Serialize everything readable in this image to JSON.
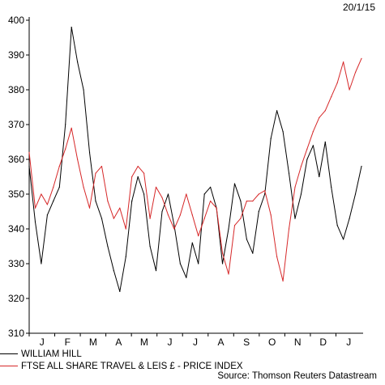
{
  "chart_data": {
    "type": "line",
    "date_label": "20/1/15",
    "source": "Source: Thomson Reuters Datastream",
    "ylim": [
      310,
      400
    ],
    "yticks": [
      400,
      390,
      380,
      370,
      360,
      350,
      340,
      330,
      320,
      310
    ],
    "xtick_labels": [
      "J",
      "F",
      "M",
      "A",
      "M",
      "J",
      "J",
      "A",
      "S",
      "O",
      "N",
      "D",
      "J"
    ],
    "grid": false,
    "legend_position": "bottom-left",
    "x_unit": "weeks from start of January 2014",
    "series": [
      {
        "name": "WILLIAM HILL",
        "color": "#000000",
        "x": [
          0,
          1,
          2,
          3,
          4,
          5,
          6,
          7,
          8,
          9,
          10,
          11,
          12,
          13,
          14,
          15,
          16,
          17,
          18,
          19,
          20,
          21,
          22,
          23,
          24,
          25,
          26,
          27,
          28,
          29,
          30,
          31,
          32,
          33,
          34,
          35,
          36,
          37,
          38,
          39,
          40,
          41,
          42,
          43,
          44,
          45,
          46,
          47,
          48,
          49,
          50,
          51,
          52,
          53,
          54,
          55
        ],
        "values": [
          358,
          342,
          330,
          344,
          348,
          352,
          370,
          398,
          388,
          380,
          362,
          348,
          343,
          335,
          328,
          322,
          332,
          348,
          355,
          350,
          335,
          328,
          345,
          350,
          341,
          330,
          326,
          336,
          330,
          350,
          352,
          346,
          330,
          340,
          353,
          348,
          337,
          333,
          345,
          350,
          366,
          374,
          368,
          356,
          343,
          350,
          360,
          364,
          355,
          365,
          352,
          341,
          337,
          343,
          350,
          358
        ]
      },
      {
        "name": "FTSE ALL SHARE TRAVEL & LEIS £ - PRICE INDEX",
        "color": "#d62728",
        "x": [
          0,
          1,
          2,
          3,
          4,
          5,
          6,
          7,
          8,
          9,
          10,
          11,
          12,
          13,
          14,
          15,
          16,
          17,
          18,
          19,
          20,
          21,
          22,
          23,
          24,
          25,
          26,
          27,
          28,
          29,
          30,
          31,
          32,
          33,
          34,
          35,
          36,
          37,
          38,
          39,
          40,
          41,
          42,
          43,
          44,
          45,
          46,
          47,
          48,
          49,
          50,
          51,
          52,
          53,
          54,
          55
        ],
        "values": [
          362,
          346,
          350,
          347,
          352,
          358,
          363,
          369,
          360,
          352,
          346,
          356,
          358,
          348,
          343,
          346,
          340,
          355,
          358,
          356,
          343,
          352,
          349,
          344,
          340,
          344,
          350,
          344,
          338,
          343,
          348,
          346,
          333,
          327,
          341,
          343,
          348,
          348,
          350,
          351,
          344,
          332,
          325,
          340,
          352,
          358,
          363,
          368,
          372,
          374,
          378,
          382,
          388,
          380,
          385,
          389
        ]
      }
    ]
  }
}
